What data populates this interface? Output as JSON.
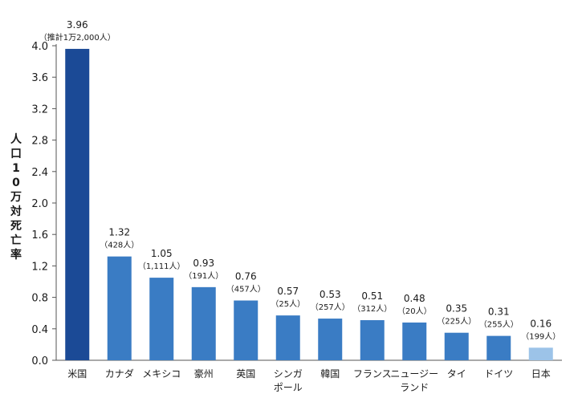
{
  "chart_data": {
    "type": "bar",
    "ylabel": "人口10万対死亡率",
    "ylim": [
      0,
      4.0
    ],
    "yticks": [
      "4.0",
      "3.6",
      "3.2",
      "2.8",
      "2.4",
      "2.0",
      "1.6",
      "1.2",
      "0.8",
      "0.4",
      "0.0"
    ],
    "grid": false,
    "categories": [
      [
        "米国"
      ],
      [
        "カナダ"
      ],
      [
        "メキシコ"
      ],
      [
        "豪州"
      ],
      [
        "英国"
      ],
      [
        "シンガ",
        "ポール"
      ],
      [
        "韓国"
      ],
      [
        "フランス"
      ],
      [
        "ニュージー",
        "ランド"
      ],
      [
        "タイ"
      ],
      [
        "ドイツ"
      ],
      [
        "日本"
      ]
    ],
    "values": [
      3.96,
      1.32,
      1.05,
      0.93,
      0.76,
      0.57,
      0.53,
      0.51,
      0.48,
      0.35,
      0.31,
      0.16
    ],
    "value_labels": [
      "3.96",
      "1.32",
      "1.05",
      "0.93",
      "0.76",
      "0.57",
      "0.53",
      "0.51",
      "0.48",
      "0.35",
      "0.31",
      "0.16"
    ],
    "notes": [
      "（推計1万2,000人）",
      "（428人）",
      "（1,111人）",
      "（191人）",
      "（457人）",
      "（25人）",
      "（257人）",
      "（312人）",
      "（20人）",
      "（225人）",
      "（255人）",
      "（199人）"
    ],
    "colors": {
      "first": "#1b4a96",
      "default": "#3a7cc4",
      "last": "#9cc3e8",
      "axis": "#555555"
    }
  }
}
